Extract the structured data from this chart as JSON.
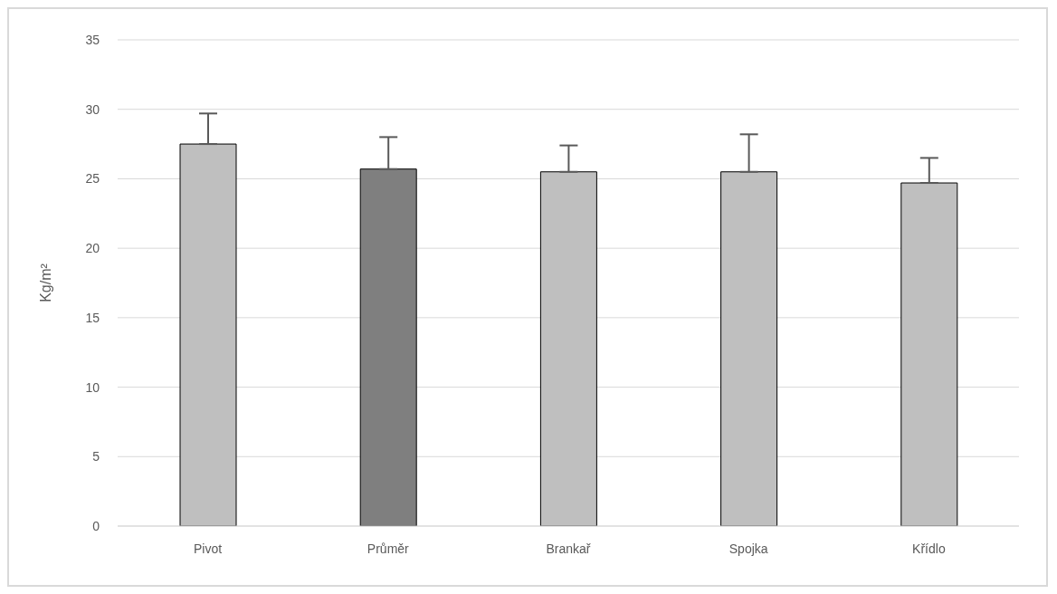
{
  "chart_data": {
    "type": "bar",
    "ylabel": "Kg/m²",
    "categories": [
      "Pivot",
      "Průměr",
      "Brankař",
      "Spojka",
      "Křídlo"
    ],
    "values": [
      27.5,
      25.7,
      25.5,
      25.5,
      24.7
    ],
    "colors": [
      "#bfbfbf",
      "#7f7f7f",
      "#bfbfbf",
      "#bfbfbf",
      "#bfbfbf"
    ],
    "errors": [
      [
        27.5,
        29.7
      ],
      [
        25.7,
        28.0
      ],
      [
        25.5,
        27.4
      ],
      [
        25.5,
        28.2
      ],
      [
        24.7,
        26.5
      ]
    ],
    "ylim": [
      0,
      35
    ],
    "yticks": [
      0,
      5,
      10,
      15,
      20,
      25,
      30,
      35
    ],
    "grid": "y"
  }
}
